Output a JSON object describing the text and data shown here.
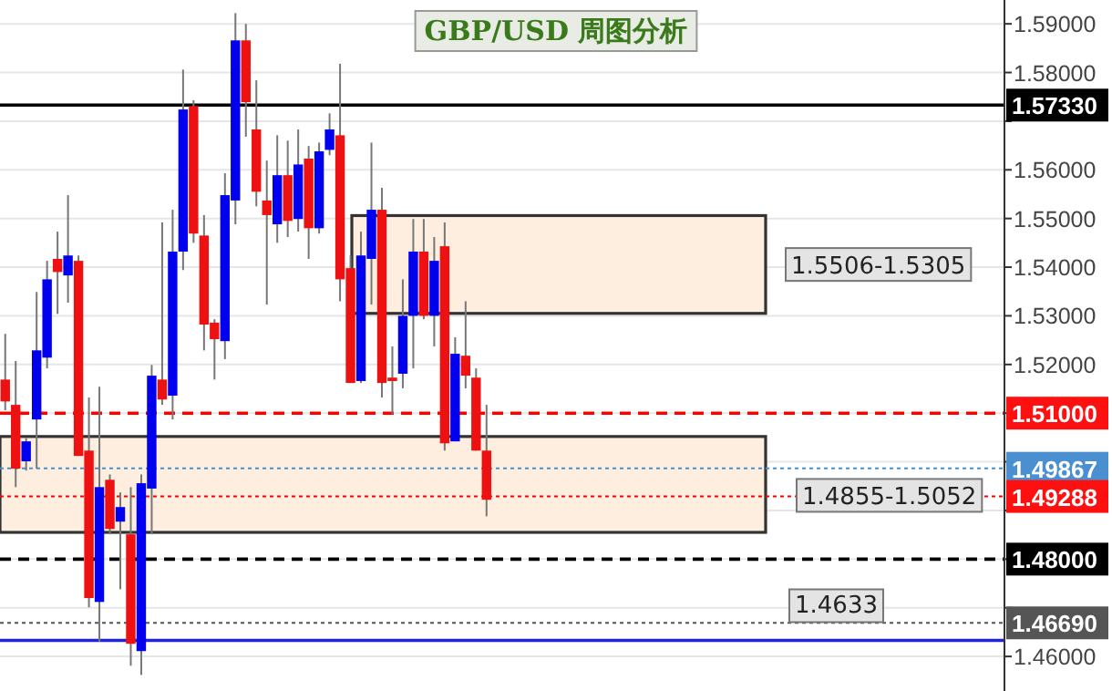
{
  "chart_data": {
    "type": "candlestick",
    "title": "GBP/USD 周图分析",
    "categories": [
      null,
      null,
      null,
      null,
      null,
      null,
      null,
      null,
      null,
      null,
      null,
      null,
      null,
      null,
      null,
      null,
      null,
      null,
      null,
      null,
      null,
      null,
      null,
      null,
      null,
      null,
      null,
      null,
      null,
      null,
      null,
      null,
      null,
      null,
      null,
      null,
      null,
      null,
      null,
      null,
      null,
      null,
      null,
      null,
      null,
      null,
      null,
      null,
      null,
      null,
      null,
      null,
      null,
      null,
      null,
      null,
      null,
      null,
      null,
      null,
      null,
      null,
      null,
      null,
      null,
      null,
      null,
      null,
      null,
      null,
      null,
      null,
      null,
      null,
      null,
      null,
      null,
      null,
      null,
      null,
      null,
      null,
      null,
      null,
      null,
      null,
      null,
      null,
      null,
      null,
      null,
      null,
      null,
      null,
      null,
      null
    ],
    "ohlc": [
      [
        1.5169,
        1.5263,
        1.5106,
        1.5124
      ],
      [
        1.5117,
        1.5207,
        1.4948,
        1.4986
      ],
      [
        1.5001,
        1.5049,
        1.4982,
        1.5042
      ],
      [
        1.5087,
        1.5349,
        1.4986,
        1.5229
      ],
      [
        1.5214,
        1.5413,
        1.5192,
        1.5375
      ],
      [
        1.5417,
        1.5473,
        1.5304,
        1.539
      ],
      [
        1.5383,
        1.5548,
        1.5327,
        1.5424
      ],
      [
        1.5413,
        1.5424,
        1.5012,
        1.5012
      ],
      [
        1.5023,
        1.5132,
        1.4701,
        1.472
      ],
      [
        1.4712,
        1.5154,
        1.463,
        1.4948
      ],
      [
        1.4963,
        1.4974,
        1.4851,
        1.4862
      ],
      [
        1.4877,
        1.4937,
        1.4738,
        1.4907
      ],
      [
        1.4851,
        1.4948,
        1.4581,
        1.4626
      ],
      [
        1.4611,
        1.4974,
        1.4562,
        1.4956
      ],
      [
        1.4945,
        1.5199,
        1.4851,
        1.5177
      ],
      [
        1.5169,
        1.5492,
        1.5117,
        1.5128
      ],
      [
        1.5136,
        1.5518,
        1.5087,
        1.5432
      ],
      [
        1.5432,
        1.5806,
        1.5394,
        1.5724
      ],
      [
        1.5731,
        1.5743,
        1.545,
        1.5469
      ],
      [
        1.5465,
        1.5507,
        1.5229,
        1.5282
      ],
      [
        1.5286,
        1.5293,
        1.5169,
        1.5252
      ],
      [
        1.5248,
        1.5593,
        1.5211,
        1.5548
      ],
      [
        1.5537,
        1.5922,
        1.5488,
        1.5866
      ],
      [
        1.5866,
        1.59,
        1.5668,
        1.5739
      ],
      [
        1.5683,
        1.5784,
        1.5525,
        1.5555
      ],
      [
        1.5537,
        1.5619,
        1.5323,
        1.5507
      ],
      [
        1.5488,
        1.5671,
        1.545,
        1.5589
      ],
      [
        1.5589,
        1.566,
        1.5462,
        1.5495
      ],
      [
        1.5499,
        1.5683,
        1.5473,
        1.5611
      ],
      [
        1.5623,
        1.5649,
        1.5417,
        1.548
      ],
      [
        1.548,
        1.5656,
        1.5469,
        1.5638
      ],
      [
        1.5641,
        1.5716,
        1.563,
        1.5683
      ],
      [
        1.5671,
        1.5818,
        1.533,
        1.5375
      ],
      [
        1.5398,
        1.5424,
        1.5162,
        1.5162
      ],
      [
        1.5166,
        1.5473,
        1.5162,
        1.5424
      ],
      [
        1.5417,
        1.5656,
        1.5323,
        1.5518
      ],
      [
        1.5518,
        1.5563,
        1.5132,
        1.5162
      ],
      [
        1.5173,
        1.5237,
        1.5098,
        1.5166
      ],
      [
        1.5181,
        1.5375,
        1.5151,
        1.53
      ],
      [
        1.53,
        1.5499,
        1.5192,
        1.5432
      ],
      [
        1.5432,
        1.5499,
        1.5293,
        1.53
      ],
      [
        1.53,
        1.5462,
        1.5237,
        1.5413
      ],
      [
        1.5443,
        1.5492,
        1.5023,
        1.5038
      ],
      [
        1.5042,
        1.5256,
        1.5042,
        1.5222
      ],
      [
        1.5218,
        1.533,
        1.5151,
        1.5177
      ],
      [
        1.5173,
        1.5192,
        1.5023,
        1.5023
      ],
      [
        1.5023,
        1.5117,
        1.4888,
        1.4922
      ],
      null,
      null,
      null,
      null,
      null,
      null,
      null,
      null,
      null,
      null,
      null,
      null,
      null,
      null,
      null,
      null,
      null,
      null,
      null,
      null,
      null,
      null,
      null,
      null,
      null,
      null,
      null,
      null,
      null,
      null,
      null,
      null,
      null,
      null,
      null,
      null,
      null,
      null,
      null,
      null,
      null,
      null,
      null,
      null,
      null,
      null,
      null,
      null,
      null
    ],
    "colors": [
      "#ee1111",
      "#ee1111",
      "#0000ee",
      "#0000ee",
      "#0000ee",
      "#ee1111",
      "#0000ee",
      "#ee1111",
      "#ee1111",
      "#0000ee",
      "#ee1111",
      "#0000ee",
      "#ee1111",
      "#0000ee",
      "#0000ee",
      "#ee1111",
      "#0000ee",
      "#0000ee",
      "#ee1111",
      "#ee1111",
      "#ee1111",
      "#0000ee",
      "#0000ee",
      "#ee1111",
      "#ee1111",
      "#ee1111",
      "#0000ee",
      "#ee1111",
      "#0000ee",
      "#ee1111",
      "#0000ee",
      "#0000ee",
      "#ee1111",
      "#ee1111",
      "#0000ee",
      "#0000ee",
      "#ee1111",
      "#ee1111",
      "#0000ee",
      "#0000ee",
      "#ee1111",
      "#0000ee",
      "#ee1111",
      "#0000ee",
      "#ee1111",
      "#ee1111",
      "#ee1111",
      null,
      null,
      null,
      null,
      null,
      null,
      null,
      null,
      null,
      null,
      null,
      null,
      null,
      null,
      null,
      null,
      null,
      null,
      null,
      null,
      null,
      null,
      null,
      null,
      null,
      null,
      null,
      null,
      null,
      null,
      null,
      null,
      null,
      null,
      null,
      null,
      null,
      null,
      null,
      null,
      null,
      null,
      null,
      null,
      null,
      null,
      null,
      null,
      null
    ],
    "ylim": [
      1.4529,
      1.5949
    ],
    "yticks": [
      {
        "value": 1.46,
        "label": "1.46000"
      },
      {
        "value": 1.47,
        "label": null
      },
      {
        "value": 1.48,
        "label": null
      },
      {
        "value": 1.49,
        "label": null
      },
      {
        "value": 1.5,
        "label": null
      },
      {
        "value": 1.51,
        "label": null
      },
      {
        "value": 1.52,
        "label": "1.52000"
      },
      {
        "value": 1.53,
        "label": "1.53000"
      },
      {
        "value": 1.54,
        "label": "1.54000"
      },
      {
        "value": 1.55,
        "label": "1.55000"
      },
      {
        "value": 1.56,
        "label": "1.56000"
      },
      {
        "value": 1.57,
        "label": null
      },
      {
        "value": 1.58,
        "label": "1.58000"
      },
      {
        "value": 1.59,
        "label": "1.59000"
      }
    ],
    "bands": [
      {
        "axis": "y",
        "from": 1.5305,
        "to": 1.5506,
        "label": "1.5506-1.5305",
        "color": "#fdeee0"
      },
      {
        "axis": "y",
        "from": 1.4855,
        "to": 1.5052,
        "label": "1.4855-1.5052",
        "color": "#fdeee0"
      }
    ],
    "ref_lines": [
      {
        "axis": "y",
        "value": 1.5733,
        "label": "1.57330",
        "color": "#000000",
        "line_style": "solid"
      },
      {
        "axis": "y",
        "value": 1.51,
        "label": "1.51000",
        "color": "#ff0000",
        "line_style": "dashed"
      },
      {
        "axis": "y",
        "value": 1.49867,
        "label": "1.49867",
        "color": "#4a8fd0",
        "line_style": "dotted"
      },
      {
        "axis": "y",
        "value": 1.49288,
        "label": "1.49288",
        "color": "#ff0000",
        "line_style": "dotted"
      },
      {
        "axis": "y",
        "value": 1.48,
        "label": "1.48000",
        "color": "#000000",
        "line_style": "dashed"
      },
      {
        "axis": "y",
        "value": 1.4669,
        "label": "1.46690",
        "color": "#555555",
        "line_style": "dotted"
      },
      {
        "axis": "y",
        "value": 1.4633,
        "label": "1.4633",
        "color": "#2222dd",
        "line_style": "solid"
      }
    ],
    "grid": "y"
  }
}
